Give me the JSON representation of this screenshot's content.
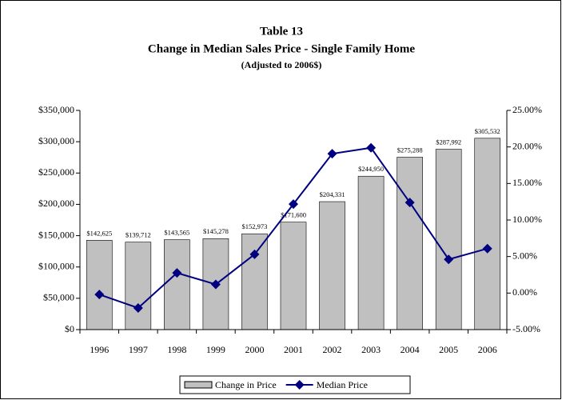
{
  "chart_data": {
    "type": "bar",
    "title": "Table 13",
    "subtitle": "Change in Median Sales Price - Single Family Home",
    "note": "(Adjusted to 2006$)",
    "categories": [
      "1996",
      "1997",
      "1998",
      "1999",
      "2000",
      "2001",
      "2002",
      "2003",
      "2004",
      "2005",
      "2006"
    ],
    "series": [
      {
        "name": "Change in Price",
        "type": "bar",
        "color": "#c0c0c0",
        "values": [
          142625,
          139712,
          143565,
          145278,
          152973,
          171600,
          204331,
          244950,
          275288,
          287992,
          305532
        ],
        "value_labels": [
          "$142,625",
          "$139,712",
          "$143,565",
          "$145,278",
          "$152,973",
          "$171,600",
          "$204,331",
          "$244,950",
          "$275,288",
          "$287,992",
          "$305,532"
        ]
      },
      {
        "name": "Median Price",
        "type": "line",
        "color": "#000080",
        "axis": "y2",
        "values": [
          -0.2,
          -2.04,
          2.76,
          1.19,
          5.3,
          12.18,
          19.07,
          19.88,
          12.39,
          4.61,
          6.09
        ]
      }
    ],
    "ylim": [
      0,
      350000
    ],
    "yticks": [
      {
        "value": 0,
        "label": "$0"
      },
      {
        "value": 50000,
        "label": "$50,000"
      },
      {
        "value": 100000,
        "label": "$100,000"
      },
      {
        "value": 150000,
        "label": "$150,000"
      },
      {
        "value": 200000,
        "label": "$200,000"
      },
      {
        "value": 250000,
        "label": "$250,000"
      },
      {
        "value": 300000,
        "label": "$300,000"
      },
      {
        "value": 350000,
        "label": "$350,000"
      }
    ],
    "y2lim": [
      -5,
      25
    ],
    "y2ticks": [
      {
        "value": -5,
        "label": "-5.00%"
      },
      {
        "value": 0,
        "label": "0.00%"
      },
      {
        "value": 5,
        "label": "5.00%"
      },
      {
        "value": 10,
        "label": "10.00%"
      },
      {
        "value": 15,
        "label": "15.00%"
      },
      {
        "value": 20,
        "label": "20.00%"
      },
      {
        "value": 25,
        "label": "25.00%"
      }
    ],
    "legend": "bottom"
  }
}
